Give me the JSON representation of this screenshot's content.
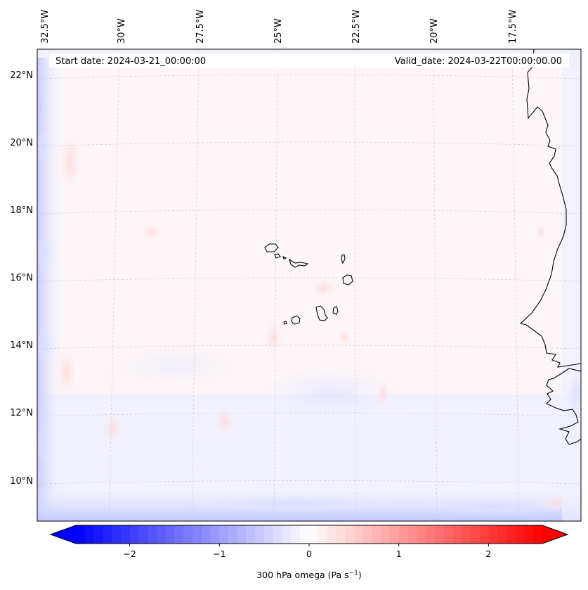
{
  "map": {
    "start_date": "Start date: 2024-03-21_00:00:00",
    "valid_date": "Valid_date: 2024-03-22T00:00:00.00",
    "lon_labels": [
      "32.5°W",
      "30°W",
      "27.5°W",
      "25°W",
      "22.5°W",
      "20°W",
      "17.5°W"
    ],
    "lat_labels": [
      "22°N",
      "20°N",
      "18°N",
      "16°N",
      "14°N",
      "12°N",
      "10°N"
    ],
    "colormap": "bwr",
    "field_color_low": "#0000ff",
    "field_color_mid": "#ffffff",
    "field_color_high": "#ff0000",
    "coastline_color": "#000000"
  },
  "colorbar": {
    "min": -2.6,
    "max": 2.6,
    "ticks": [
      -2,
      -1,
      0,
      1,
      2
    ],
    "tick_labels": [
      "−2",
      "−1",
      "0",
      "1",
      "2"
    ],
    "label_prefix": "300 hPa omega (Pa s",
    "label_exponent": "−1",
    "label_suffix": ")"
  }
}
